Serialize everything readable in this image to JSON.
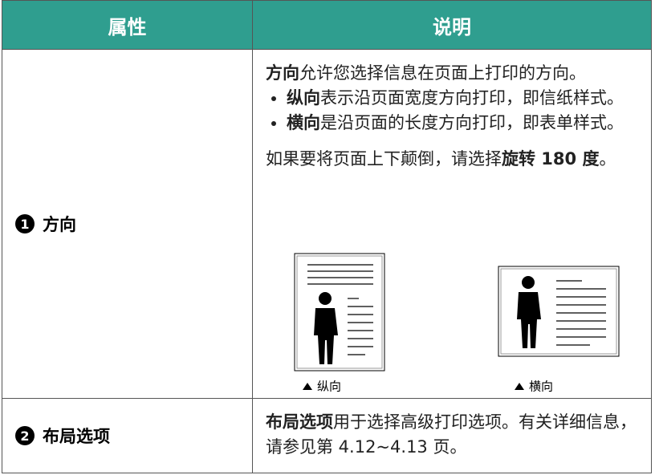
{
  "header": {
    "col1": "属性",
    "col2": "说明"
  },
  "rows": [
    {
      "number": "1",
      "label": "方向",
      "description": {
        "intro": {
          "bold": "方向",
          "text": "允许您选择信息在页面上打印的方向。"
        },
        "bullets": [
          {
            "bold": "纵向",
            "text": "表示沿页面宽度方向打印，即信纸样式。"
          },
          {
            "bold": "横向",
            "text": "是沿页面的长度方向打印，即表单样式。"
          }
        ],
        "note": {
          "text": "如果要将页面上下颠倒，请选择",
          "bold": "旋转 180 度",
          "end": "。"
        },
        "figures": [
          {
            "caption": "纵向"
          },
          {
            "caption": "横向"
          }
        ]
      }
    },
    {
      "number": "2",
      "label": "布局选项",
      "description": {
        "intro": {
          "bold": "布局选项",
          "text": "用于选择高级打印选项。有关详细信息，请参见第 4.12~4.13 页。"
        }
      }
    }
  ]
}
